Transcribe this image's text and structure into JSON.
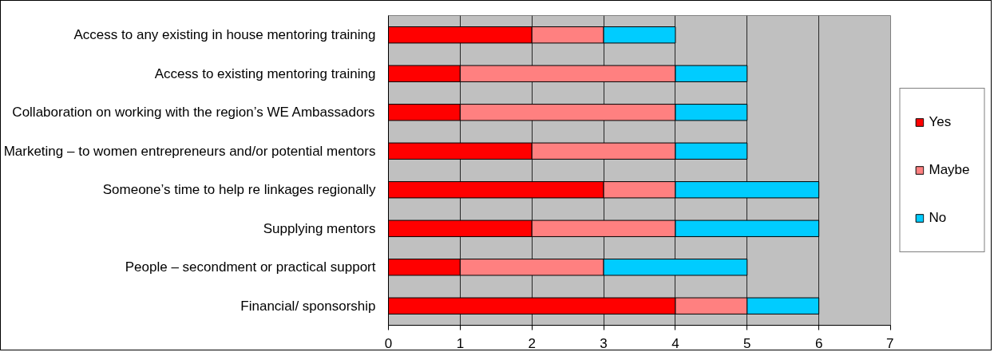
{
  "chart_data": {
    "type": "bar",
    "orientation": "horizontal",
    "stacked": true,
    "categories": [
      "Access to any existing in house mentoring training",
      "Access to existing mentoring training",
      "Collaboration on working with the region’s WE Ambassadors",
      "Marketing – to women entrepreneurs and/or potential mentors",
      "Someone’s time to help re linkages regionally",
      "Supplying mentors",
      "People – secondment or practical support",
      "Financial/ sponsorship"
    ],
    "series": [
      {
        "name": "Yes",
        "color": "#ff0000",
        "values": [
          2,
          1,
          1,
          2,
          3,
          2,
          1,
          4
        ]
      },
      {
        "name": "Maybe",
        "color": "#ff8080",
        "values": [
          1,
          3,
          3,
          2,
          1,
          2,
          2,
          1
        ]
      },
      {
        "name": "No",
        "color": "#00ccff",
        "values": [
          1,
          1,
          1,
          1,
          2,
          2,
          2,
          1
        ]
      }
    ],
    "xlim": [
      0,
      7
    ],
    "xticks": [
      0,
      1,
      2,
      3,
      4,
      5,
      6,
      7
    ],
    "grid": "x",
    "legend": "right"
  }
}
